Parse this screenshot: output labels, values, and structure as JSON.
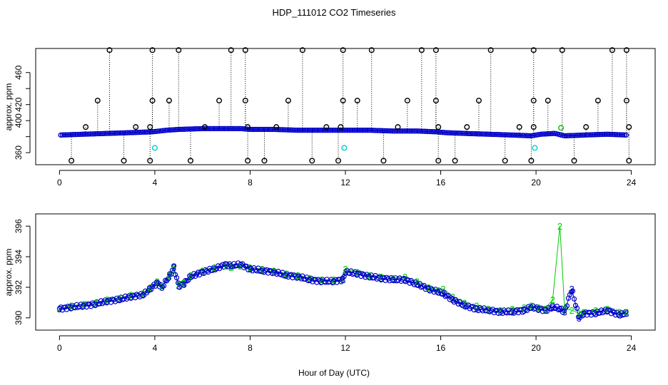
{
  "figure_title": "HDP_111012  CO2 Timeseries",
  "xlabel": "Hour of Day (UTC)",
  "chart_data": [
    {
      "type": "scatter",
      "panel": "top",
      "title": "HDP_111012  CO2 Timeseries",
      "xlabel": "",
      "ylabel": "approx. ppm",
      "xlim": [
        -1,
        25
      ],
      "ylim": [
        345,
        490
      ],
      "x_ticks": [
        0,
        4,
        8,
        12,
        16,
        20,
        24
      ],
      "x_tick_labels": [
        "0",
        "4",
        "8",
        "12",
        "16",
        "20",
        "24"
      ],
      "y_ticks": [
        360,
        380,
        400,
        420,
        440,
        460
      ],
      "y_tick_labels": [
        "360",
        "",
        "400",
        "420",
        "",
        "460"
      ],
      "colors": {
        "base": "#0000cc",
        "spike": "#000000",
        "low": "#00cccc",
        "mid": "#00cc00"
      },
      "series": [
        {
          "name": "background",
          "marker": "circle",
          "color": "#0000cc",
          "x": [
            0.05,
            1,
            2,
            3,
            3.9,
            4.5,
            5,
            6,
            7,
            7.6,
            8,
            9,
            10,
            11,
            12,
            13,
            14,
            15,
            15.8,
            16.2,
            17,
            18,
            19,
            19.8,
            20.2,
            20.8,
            21.2,
            22,
            23,
            23.8
          ],
          "y": [
            382,
            383,
            384,
            385,
            386,
            388,
            389,
            390,
            390,
            390,
            389,
            389,
            388,
            388,
            388,
            388,
            387,
            387,
            386,
            385,
            384,
            383,
            382,
            381,
            383,
            384,
            381,
            382,
            383,
            382
          ]
        },
        {
          "name": "spikes-high",
          "marker": "circle",
          "color": "#000000",
          "x": [
            2.1,
            3.9,
            5.0,
            7.2,
            7.8,
            10.2,
            11.9,
            13.1,
            15.2,
            15.8,
            18.1,
            19.9,
            21.1,
            23.2,
            23.8
          ],
          "y": [
            488,
            488,
            488,
            488,
            488,
            488,
            488,
            488,
            488,
            488,
            488,
            488,
            488,
            488,
            488
          ]
        },
        {
          "name": "spikes-mid",
          "marker": "circle",
          "color": "#000000",
          "x": [
            1.6,
            3.9,
            4.6,
            6.7,
            7.8,
            9.6,
            11.9,
            12.5,
            14.6,
            15.8,
            17.6,
            19.9,
            20.5,
            22.6,
            23.8
          ],
          "y": [
            425,
            425,
            425,
            425,
            425,
            425,
            425,
            425,
            425,
            425,
            425,
            425,
            425,
            425,
            425
          ]
        },
        {
          "name": "spikes-upper-small",
          "marker": "circle",
          "color": "#000000",
          "x": [
            1.1,
            3.2,
            3.8,
            6.1,
            7.9,
            9.1,
            11.2,
            11.8,
            14.2,
            15.9,
            17.1,
            19.3,
            19.9,
            22.1,
            23.9
          ],
          "y": [
            392,
            392,
            392,
            392,
            392,
            392,
            392,
            392,
            392,
            392,
            392,
            392,
            392,
            392,
            392
          ]
        },
        {
          "name": "spikes-low",
          "marker": "circle",
          "color": "#000000",
          "x": [
            0.5,
            2.7,
            3.8,
            5.5,
            7.9,
            8.6,
            10.6,
            11.7,
            13.6,
            15.9,
            16.6,
            18.7,
            19.8,
            21.6,
            23.9
          ],
          "y": [
            350,
            350,
            350,
            350,
            350,
            350,
            350,
            350,
            350,
            350,
            350,
            350,
            350,
            350,
            350
          ]
        },
        {
          "name": "low-cyan",
          "marker": "circle",
          "color": "#00cccc",
          "x": [
            4.0,
            11.95,
            19.95
          ],
          "y": [
            366,
            366,
            366
          ]
        },
        {
          "name": "green-point",
          "marker": "circle",
          "color": "#00cc00",
          "x": [
            21.05
          ],
          "y": [
            391
          ]
        }
      ]
    },
    {
      "type": "line",
      "panel": "bottom",
      "title": "",
      "xlabel": "Hour of Day (UTC)",
      "ylabel": "approx. ppm",
      "xlim": [
        -1,
        25
      ],
      "ylim": [
        389.2,
        396.8
      ],
      "x_ticks": [
        0,
        4,
        8,
        12,
        16,
        20,
        24
      ],
      "x_tick_labels": [
        "0",
        "4",
        "8",
        "12",
        "16",
        "20",
        "24"
      ],
      "y_ticks": [
        390,
        392,
        394,
        396
      ],
      "y_tick_labels": [
        "390",
        "392",
        "394",
        "396"
      ],
      "x": [
        0,
        0.5,
        1,
        1.5,
        2,
        2.5,
        3,
        3.5,
        3.8,
        4.1,
        4.3,
        4.6,
        4.8,
        5.0,
        5.2,
        5.5,
        6.0,
        6.5,
        7.0,
        7.2,
        7.6,
        8.0,
        8.5,
        9.0,
        9.5,
        10.0,
        10.5,
        11.0,
        11.5,
        11.9,
        12.0,
        12.5,
        13.0,
        13.5,
        14.0,
        14.5,
        15.0,
        15.5,
        15.9,
        16.1,
        16.5,
        17.0,
        17.5,
        18.0,
        18.5,
        19.0,
        19.5,
        19.8,
        20.1,
        20.4,
        20.7,
        21.0,
        21.2,
        21.5,
        21.8,
        22.0,
        22.5,
        23.0,
        23.5,
        23.8
      ],
      "series": [
        {
          "name": "2",
          "label": "2",
          "color": "#00cc00",
          "values": [
            390.6,
            390.8,
            390.9,
            391.0,
            391.2,
            391.3,
            391.5,
            391.6,
            392.0,
            392.4,
            392.1,
            392.8,
            393.2,
            392.2,
            392.3,
            392.8,
            393.1,
            393.3,
            393.4,
            393.3,
            393.4,
            393.3,
            393.2,
            393.1,
            392.9,
            392.8,
            392.6,
            392.5,
            392.5,
            392.5,
            393.2,
            393.0,
            392.8,
            392.7,
            392.6,
            392.7,
            392.4,
            392.0,
            391.8,
            391.9,
            391.4,
            391.0,
            390.8,
            390.6,
            390.5,
            390.6,
            390.7,
            390.8,
            390.7,
            390.6,
            391.2,
            396.0,
            390.6,
            390.5,
            390.3,
            390.4,
            390.5,
            390.6,
            390.4,
            390.4
          ]
        },
        {
          "name": "3",
          "label": "3",
          "color": "#0000cc",
          "values": [
            390.6,
            390.7,
            390.8,
            390.9,
            391.1,
            391.2,
            391.4,
            391.5,
            391.9,
            392.3,
            392.0,
            392.7,
            393.3,
            392.1,
            392.2,
            392.7,
            393.0,
            393.2,
            393.5,
            393.4,
            393.5,
            393.2,
            393.1,
            393.0,
            392.8,
            392.7,
            392.5,
            392.4,
            392.4,
            392.5,
            393.0,
            392.9,
            392.7,
            392.6,
            392.5,
            392.5,
            392.2,
            391.9,
            391.7,
            391.6,
            391.2,
            390.8,
            390.6,
            390.5,
            390.4,
            390.4,
            390.5,
            390.7,
            390.6,
            390.5,
            390.7,
            390.6,
            390.4,
            391.9,
            390.0,
            390.3,
            390.3,
            390.5,
            390.2,
            390.3
          ]
        }
      ]
    }
  ]
}
